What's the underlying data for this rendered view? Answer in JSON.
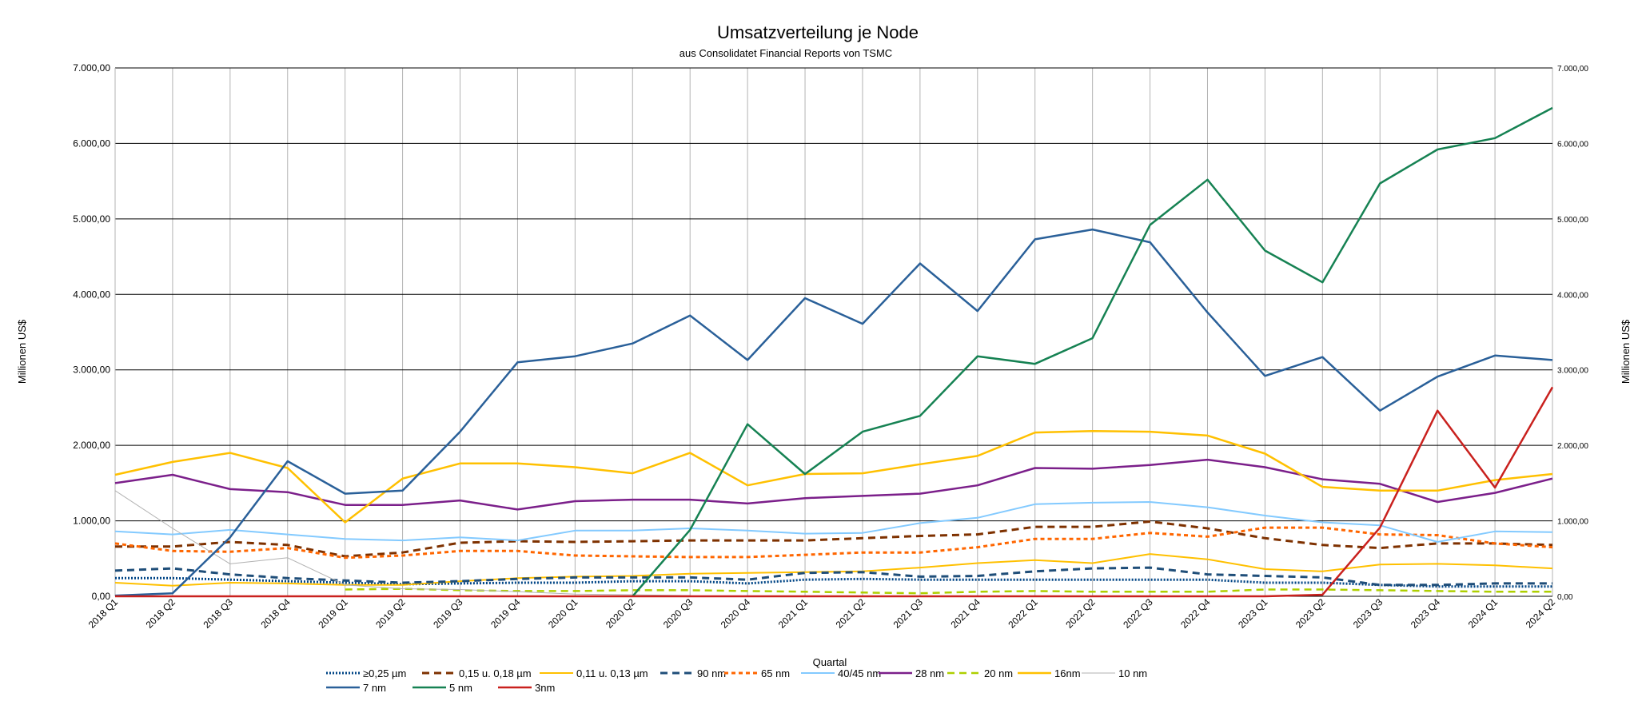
{
  "chart_data": {
    "type": "line",
    "title": "Umsatzverteilung je Node",
    "subtitle": "aus Consolidatet Financial Reports von TSMC",
    "xlabel": "Quartal",
    "ylabel": "Millionen US$",
    "ylabel_right": "Millionen US$",
    "ylim": [
      0,
      7000
    ],
    "yticks": [
      0,
      1000,
      2000,
      3000,
      4000,
      5000,
      6000,
      7000
    ],
    "ytick_labels": [
      "0,00",
      "1.000,00",
      "2.000,00",
      "3.000,00",
      "4.000,00",
      "5.000,00",
      "6.000,00",
      "7.000,00"
    ],
    "grid": true,
    "legend_position": "bottom",
    "categories": [
      "2018 Q1",
      "2018 Q2",
      "2018 Q3",
      "2018 Q4",
      "2019 Q1",
      "2019 Q2",
      "2019 Q3",
      "2019 Q4",
      "2020 Q1",
      "2020 Q2",
      "2020 Q3",
      "2020 Q4",
      "2021 Q1",
      "2021 Q2",
      "2021 Q3",
      "2021 Q4",
      "2022 Q1",
      "2022 Q2",
      "2022 Q3",
      "2022 Q4",
      "2023 Q1",
      "2023 Q2",
      "2023 Q3",
      "2023 Q4",
      "2024 Q1",
      "2024 Q2"
    ],
    "series": [
      {
        "name": "≥0,25 µm",
        "color": "#004586",
        "dash": "2,2",
        "width": 3,
        "values": [
          240,
          240,
          220,
          200,
          180,
          160,
          170,
          180,
          180,
          200,
          200,
          170,
          220,
          230,
          220,
          220,
          220,
          220,
          220,
          220,
          180,
          180,
          150,
          130,
          130,
          130
        ]
      },
      {
        "name": "0,15 u. 0,18 µm",
        "color": "#7e3100",
        "dash": "9,6",
        "width": 3,
        "values": [
          660,
          660,
          720,
          680,
          530,
          580,
          710,
          730,
          720,
          730,
          740,
          740,
          740,
          770,
          800,
          820,
          920,
          920,
          990,
          900,
          770,
          680,
          640,
          700,
          700,
          680
        ]
      },
      {
        "name": "0,11 u. 0,13 µm",
        "color": "#ffc000",
        "dash": null,
        "width": 2,
        "values": [
          180,
          140,
          180,
          170,
          150,
          150,
          200,
          240,
          260,
          270,
          300,
          310,
          320,
          330,
          380,
          440,
          480,
          440,
          560,
          490,
          360,
          330,
          420,
          430,
          410,
          370
        ]
      },
      {
        "name": "90 nm",
        "color": "#1f4e79",
        "dash": "9,6",
        "width": 3,
        "values": [
          340,
          370,
          290,
          240,
          210,
          180,
          200,
          230,
          250,
          250,
          250,
          220,
          310,
          320,
          260,
          270,
          330,
          370,
          380,
          290,
          270,
          250,
          150,
          150,
          170,
          170
        ]
      },
      {
        "name": "65 nm",
        "color": "#ff6600",
        "dash": "5,4",
        "width": 3,
        "values": [
          700,
          600,
          590,
          640,
          510,
          540,
          600,
          600,
          540,
          530,
          520,
          520,
          550,
          580,
          580,
          650,
          760,
          760,
          840,
          790,
          910,
          910,
          820,
          810,
          700,
          650
        ]
      },
      {
        "name": "40/45 nm",
        "color": "#83caff",
        "dash": null,
        "width": 2,
        "values": [
          860,
          820,
          880,
          820,
          760,
          740,
          780,
          740,
          870,
          870,
          900,
          870,
          830,
          840,
          970,
          1040,
          1220,
          1240,
          1250,
          1180,
          1070,
          980,
          940,
          720,
          860,
          850
        ]
      },
      {
        "name": "28 nm",
        "color": "#7b1f8a",
        "dash": null,
        "width": 2.5,
        "values": [
          1500,
          1610,
          1420,
          1380,
          1210,
          1210,
          1270,
          1150,
          1260,
          1280,
          1280,
          1230,
          1300,
          1330,
          1360,
          1470,
          1700,
          1690,
          1740,
          1810,
          1710,
          1550,
          1490,
          1250,
          1370,
          1560
        ]
      },
      {
        "name": "20 nm",
        "color": "#aecf00",
        "dash": "9,6",
        "width": 2.5,
        "values": [
          null,
          null,
          null,
          null,
          90,
          100,
          80,
          70,
          70,
          80,
          80,
          70,
          60,
          50,
          40,
          60,
          70,
          60,
          60,
          60,
          90,
          90,
          80,
          70,
          60,
          60
        ]
      },
      {
        "name": "16nm",
        "color": "#ffc000",
        "dash": null,
        "width": 2.5,
        "values": [
          1610,
          1780,
          1900,
          1700,
          980,
          1560,
          1760,
          1760,
          1710,
          1630,
          1900,
          1470,
          1620,
          1630,
          1750,
          1860,
          2170,
          2190,
          2180,
          2130,
          1890,
          1450,
          1400,
          1400,
          1540,
          1620
        ]
      },
      {
        "name": "10 nm",
        "color": "#b2b2b2",
        "dash": null,
        "width": 1,
        "values": [
          1400,
          900,
          430,
          510,
          150,
          100,
          90,
          60,
          30,
          20,
          10,
          null,
          null,
          null,
          null,
          null,
          null,
          null,
          null,
          null,
          null,
          null,
          null,
          null,
          null,
          null
        ]
      },
      {
        "name": "7 nm",
        "color": "#2a6099",
        "dash": null,
        "width": 2.5,
        "values": [
          10,
          40,
          780,
          1790,
          1360,
          1400,
          2180,
          3100,
          3180,
          3350,
          3720,
          3130,
          3950,
          3610,
          4410,
          3780,
          4730,
          4860,
          4690,
          3760,
          2920,
          3170,
          2460,
          2910,
          3190,
          3130
        ]
      },
      {
        "name": "5 nm",
        "color": "#168253",
        "dash": null,
        "width": 2.5,
        "values": [
          null,
          null,
          null,
          null,
          null,
          null,
          null,
          null,
          null,
          0,
          880,
          2280,
          1620,
          2180,
          2390,
          3180,
          3080,
          3420,
          4920,
          5520,
          4580,
          4160,
          5470,
          5920,
          6070,
          6470
        ]
      },
      {
        "name": "3nm",
        "color": "#c9211e",
        "dash": null,
        "width": 2.5,
        "values": [
          0,
          0,
          0,
          0,
          0,
          0,
          0,
          0,
          0,
          0,
          0,
          0,
          0,
          0,
          0,
          0,
          0,
          0,
          0,
          0,
          0,
          20,
          910,
          2460,
          1440,
          2770
        ]
      }
    ]
  }
}
